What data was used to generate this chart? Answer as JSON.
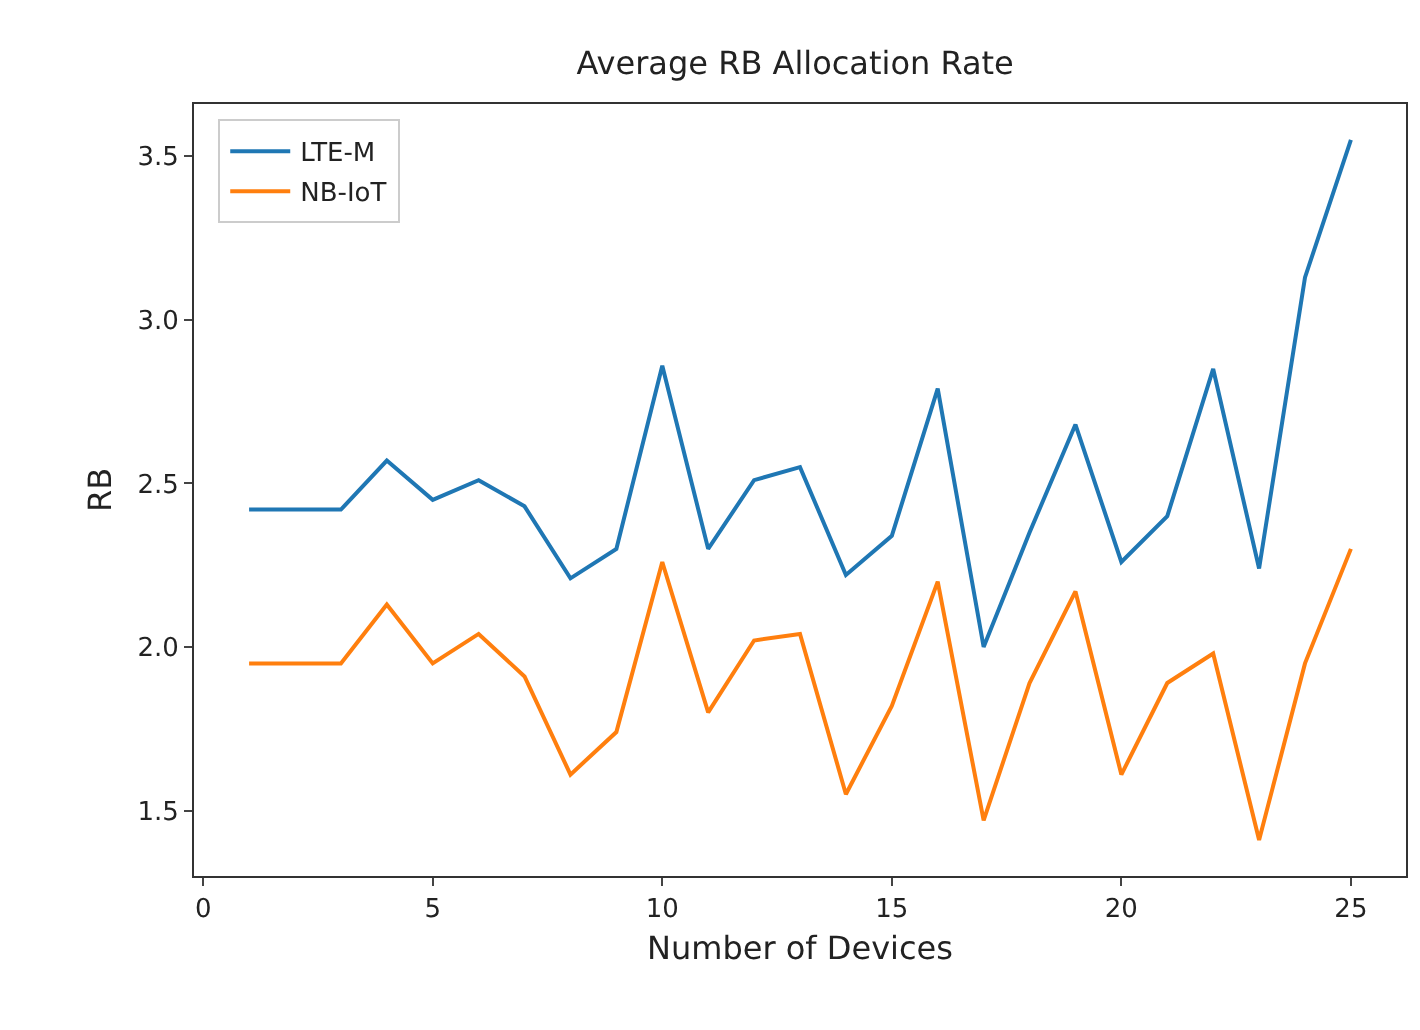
{
  "chart_data": {
    "type": "line",
    "title": "Average RB Allocation Rate",
    "xlabel": "Number of Devices",
    "ylabel": "RB",
    "x": [
      1,
      2,
      3,
      4,
      5,
      6,
      7,
      8,
      9,
      10,
      11,
      12,
      13,
      14,
      15,
      16,
      17,
      18,
      19,
      20,
      21,
      22,
      23,
      24,
      25
    ],
    "series": [
      {
        "name": "LTE-M",
        "color": "#1f77b4",
        "values": [
          2.42,
          2.42,
          2.42,
          2.57,
          2.45,
          2.51,
          2.43,
          2.21,
          2.3,
          2.86,
          2.3,
          2.51,
          2.55,
          2.22,
          2.34,
          2.79,
          2.0,
          2.35,
          2.68,
          2.26,
          2.4,
          2.85,
          2.24,
          3.13,
          3.55
        ]
      },
      {
        "name": "NB-IoT",
        "color": "#ff7f0e",
        "values": [
          1.95,
          1.95,
          1.95,
          2.13,
          1.95,
          2.04,
          1.91,
          1.61,
          1.74,
          2.26,
          1.8,
          2.02,
          2.04,
          1.55,
          1.82,
          2.2,
          1.47,
          1.89,
          2.17,
          1.61,
          1.89,
          1.98,
          1.41,
          1.95,
          2.3
        ]
      }
    ],
    "xlim": [
      -0.2,
      26.2
    ],
    "xticks": [
      0,
      5,
      10,
      15,
      20,
      25
    ],
    "ylim": [
      1.3,
      3.66
    ],
    "yticks": [
      {
        "value": 1.5,
        "label": "1.5"
      },
      {
        "value": 2.0,
        "label": "2.0"
      },
      {
        "value": 2.5,
        "label": "2.5"
      },
      {
        "value": 3.0,
        "label": "3.0"
      },
      {
        "value": 3.5,
        "label": "3.5"
      }
    ],
    "grid": false,
    "legend": "top left",
    "marker": "none",
    "line_style": "solid"
  }
}
